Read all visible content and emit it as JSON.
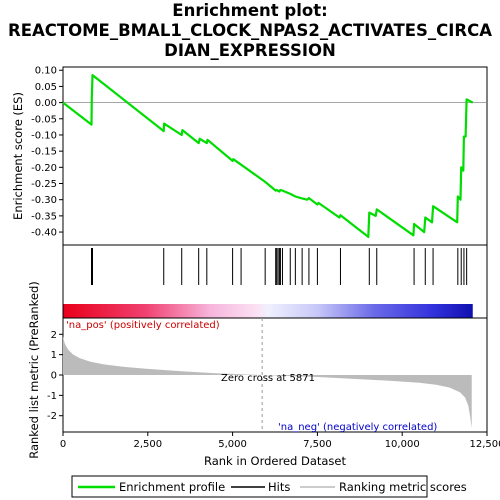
{
  "title_lines": [
    "Enrichment plot:",
    "REACTOME_BMAL1_CLOCK_NPAS2_ACTIVATES_CIRCA",
    "DIAN_EXPRESSION"
  ],
  "legend": {
    "enrichment_profile": "Enrichment profile",
    "hits": "Hits",
    "ranking_metric": "Ranking metric scores"
  },
  "colors": {
    "profile": "#00dd00",
    "hits": "#000000",
    "ranking_fill": "#bbbbbb",
    "zero_line": "#999999",
    "pos_text": "#cc0000",
    "neg_text": "#0000cc"
  },
  "chart_data": [
    {
      "type": "line",
      "name": "enrichment",
      "ylabel": "Enrichment score (ES)",
      "ylim": [
        -0.44,
        0.11
      ],
      "yticks": [
        0.1,
        0.05,
        0.0,
        -0.05,
        -0.1,
        -0.15,
        -0.2,
        -0.25,
        -0.3,
        -0.35,
        -0.4
      ],
      "ytick_labels": [
        "0.10",
        "0.05",
        "0.00",
        "-0.05",
        "-0.10",
        "-0.15",
        "-0.20",
        "-0.25",
        "-0.30",
        "-0.35",
        "-0.40"
      ],
      "xlim": [
        0,
        12500
      ],
      "points": [
        [
          0,
          0.0
        ],
        [
          840,
          -0.068
        ],
        [
          850,
          0.015
        ],
        [
          870,
          0.085
        ],
        [
          2970,
          -0.088
        ],
        [
          2980,
          -0.065
        ],
        [
          3500,
          -0.1
        ],
        [
          3520,
          -0.085
        ],
        [
          4000,
          -0.125
        ],
        [
          4030,
          -0.112
        ],
        [
          4240,
          -0.125
        ],
        [
          4260,
          -0.115
        ],
        [
          5000,
          -0.18
        ],
        [
          5020,
          -0.175
        ],
        [
          5250,
          -0.192
        ],
        [
          5960,
          -0.245
        ],
        [
          6270,
          -0.272
        ],
        [
          6300,
          -0.27
        ],
        [
          6380,
          -0.275
        ],
        [
          6410,
          -0.27
        ],
        [
          6470,
          -0.272
        ],
        [
          6700,
          -0.282
        ],
        [
          6850,
          -0.29
        ],
        [
          7050,
          -0.296
        ],
        [
          7200,
          -0.3
        ],
        [
          7250,
          -0.295
        ],
        [
          7500,
          -0.315
        ],
        [
          7530,
          -0.31
        ],
        [
          8150,
          -0.355
        ],
        [
          8180,
          -0.348
        ],
        [
          9000,
          -0.415
        ],
        [
          9030,
          -0.34
        ],
        [
          9220,
          -0.35
        ],
        [
          9250,
          -0.33
        ],
        [
          10330,
          -0.41
        ],
        [
          10350,
          -0.375
        ],
        [
          10650,
          -0.4
        ],
        [
          10680,
          -0.355
        ],
        [
          10880,
          -0.37
        ],
        [
          10910,
          -0.32
        ],
        [
          11620,
          -0.37
        ],
        [
          11640,
          -0.29
        ],
        [
          11720,
          -0.3
        ],
        [
          11740,
          -0.2
        ],
        [
          11800,
          -0.21
        ],
        [
          11820,
          -0.105
        ],
        [
          11870,
          -0.105
        ],
        [
          11900,
          0.01
        ],
        [
          12080,
          0.0
        ]
      ]
    },
    {
      "type": "scatter",
      "name": "hits",
      "x": [
        840,
        870,
        2970,
        3500,
        4000,
        4240,
        5000,
        5250,
        5960,
        6270,
        6300,
        6340,
        6380,
        6410,
        6470,
        6700,
        6850,
        7050,
        7250,
        7500,
        8180,
        9030,
        9250,
        10350,
        10680,
        10910,
        11640,
        11740,
        11820,
        11900
      ]
    },
    {
      "type": "area",
      "name": "ranking",
      "xlabel": "Rank in Ordered Dataset",
      "ylabel": "Ranked list metric (PreRanked)",
      "xlim": [
        0,
        12500
      ],
      "ylim": [
        -2.8,
        2.8
      ],
      "xticks": [
        0,
        2500,
        5000,
        7500,
        10000,
        12500
      ],
      "xtick_labels": [
        "0",
        "2,500",
        "5,000",
        "7,500",
        "10,000",
        "12,500"
      ],
      "yticks": [
        2,
        1,
        0,
        -1,
        -2
      ],
      "ytick_labels": [
        "2",
        "1",
        "0",
        "-1",
        "-2"
      ],
      "x": [
        0,
        50,
        150,
        300,
        500,
        800,
        1200,
        1800,
        2500,
        3500,
        4500,
        5500,
        5871,
        6500,
        7500,
        8500,
        9500,
        10500,
        11000,
        11400,
        11700,
        11850,
        11950,
        12000,
        12050
      ],
      "values": [
        1.9,
        1.55,
        1.25,
        1.0,
        0.82,
        0.66,
        0.52,
        0.4,
        0.3,
        0.18,
        0.09,
        0.02,
        0.0,
        -0.04,
        -0.1,
        -0.18,
        -0.27,
        -0.38,
        -0.48,
        -0.62,
        -0.85,
        -1.1,
        -1.5,
        -2.0,
        -2.6
      ],
      "zero_cross_label": "Zero cross at 5871",
      "pos_label": "'na_pos' (positively correlated)",
      "neg_label": "'na_neg' (negatively correlated)"
    }
  ]
}
